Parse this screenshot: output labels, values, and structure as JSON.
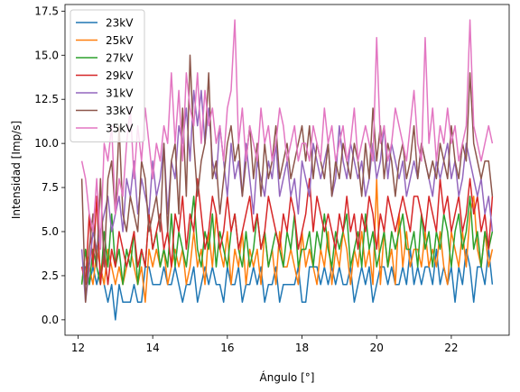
{
  "chart_data": {
    "type": "line",
    "title": "",
    "xlabel": "Ángulo [°]",
    "ylabel": "Intensidad [Imp/s]",
    "xlim": [
      11.65,
      23.55
    ],
    "ylim": [
      -0.875,
      17.875
    ],
    "xticks": [
      "12",
      "14",
      "16",
      "18",
      "20",
      "22"
    ],
    "xtick_values": [
      12,
      14,
      16,
      18,
      20,
      22
    ],
    "yticks": [
      "0.0",
      "2.5",
      "5.0",
      "7.5",
      "10.0",
      "12.5",
      "15.0",
      "17.5"
    ],
    "ytick_values": [
      0,
      2.5,
      5,
      7.5,
      10,
      12.5,
      15,
      17.5
    ],
    "grid": false,
    "legend_position": "top-left",
    "x": [
      12.1,
      12.2,
      12.3,
      12.4,
      12.5,
      12.6,
      12.7,
      12.8,
      12.9,
      13.0,
      13.1,
      13.2,
      13.3,
      13.4,
      13.5,
      13.6,
      13.7,
      13.8,
      13.9,
      14.0,
      14.1,
      14.2,
      14.3,
      14.4,
      14.5,
      14.6,
      14.7,
      14.8,
      14.9,
      15.0,
      15.1,
      15.2,
      15.3,
      15.4,
      15.5,
      15.6,
      15.7,
      15.8,
      15.9,
      16.0,
      16.1,
      16.2,
      16.3,
      16.4,
      16.5,
      16.6,
      16.7,
      16.8,
      16.9,
      17.0,
      17.1,
      17.2,
      17.3,
      17.4,
      17.5,
      17.6,
      17.7,
      17.8,
      17.9,
      18.0,
      18.1,
      18.2,
      18.3,
      18.4,
      18.5,
      18.6,
      18.7,
      18.8,
      18.9,
      19.0,
      19.1,
      19.2,
      19.3,
      19.4,
      19.5,
      19.6,
      19.7,
      19.8,
      19.9,
      20.0,
      20.1,
      20.2,
      20.3,
      20.4,
      20.5,
      20.6,
      20.7,
      20.8,
      20.9,
      21.0,
      21.1,
      21.2,
      21.3,
      21.4,
      21.5,
      21.6,
      21.7,
      21.8,
      21.9,
      22.0,
      22.1,
      22.2,
      22.3,
      22.4,
      22.5,
      22.6,
      22.7,
      22.8,
      22.9,
      23.0,
      23.1
    ],
    "series": [
      {
        "name": "23kV",
        "color": "#1f77b4",
        "values": [
          3,
          3,
          2,
          3,
          2,
          3,
          2,
          1,
          2,
          0,
          2,
          1,
          1,
          1,
          2,
          1,
          1,
          3,
          3,
          2,
          2,
          2,
          3,
          2,
          2,
          3,
          2,
          1,
          2,
          2,
          3,
          1,
          2,
          3,
          2,
          3,
          2,
          2,
          1,
          3,
          2,
          2,
          3,
          1,
          2,
          2,
          3,
          2,
          3,
          1,
          2,
          2,
          3,
          1,
          2,
          2,
          2,
          2,
          3,
          1,
          1,
          3,
          3,
          3,
          2,
          3,
          2,
          3,
          2,
          3,
          2,
          2,
          3,
          1,
          2,
          3,
          2,
          3,
          1,
          2,
          3,
          3,
          2,
          3,
          2,
          2,
          3,
          2,
          4,
          2,
          3,
          2,
          3,
          3,
          2,
          4,
          2,
          3,
          2,
          3,
          1,
          3,
          2,
          4,
          3,
          1,
          3,
          3,
          2,
          4,
          2
        ]
      },
      {
        "name": "25kV",
        "color": "#ff7f0e",
        "values": [
          2,
          4,
          3,
          2,
          4,
          3,
          2,
          4,
          3,
          2,
          3,
          2,
          3,
          4,
          3,
          2,
          3,
          1,
          4,
          3,
          4,
          3,
          4,
          2,
          3,
          4,
          3,
          4,
          2,
          3,
          5,
          3,
          4,
          2,
          5,
          3,
          6,
          4,
          3,
          5,
          2,
          4,
          3,
          5,
          2,
          4,
          3,
          4,
          2,
          5,
          3,
          4,
          2,
          5,
          3,
          3,
          4,
          3,
          2,
          5,
          3,
          4,
          3,
          2,
          4,
          3,
          5,
          2,
          4,
          3,
          5,
          4,
          2,
          4,
          3,
          5,
          3,
          4,
          2,
          8,
          2,
          5,
          3,
          4,
          2,
          6,
          3,
          5,
          3,
          4,
          4,
          3,
          5,
          3,
          4,
          3,
          5,
          3,
          2,
          5,
          4,
          3,
          5,
          3,
          6,
          7,
          4,
          3,
          5,
          3,
          4
        ]
      },
      {
        "name": "27kV",
        "color": "#2ca02c",
        "values": [
          2,
          4,
          2,
          4,
          3,
          2,
          5,
          3,
          6,
          3,
          4,
          2,
          4,
          3,
          5,
          2,
          4,
          3,
          6,
          4,
          5,
          3,
          4,
          3,
          6,
          3,
          5,
          4,
          3,
          5,
          7,
          4,
          3,
          5,
          4,
          6,
          3,
          5,
          4,
          3,
          5,
          6,
          4,
          3,
          5,
          3,
          4,
          6,
          4,
          5,
          3,
          4,
          5,
          4,
          3,
          5,
          4,
          6,
          3,
          4,
          4,
          5,
          3,
          5,
          4,
          6,
          4,
          3,
          5,
          4,
          5,
          6,
          3,
          4,
          5,
          3,
          6,
          4,
          5,
          3,
          4,
          5,
          3,
          5,
          4,
          5,
          6,
          4,
          4,
          5,
          3,
          6,
          4,
          5,
          3,
          5,
          4,
          6,
          5,
          3,
          5,
          6,
          4,
          5,
          7,
          4,
          5,
          3,
          5,
          4,
          5
        ]
      },
      {
        "name": "29kV",
        "color": "#d62728",
        "values": [
          3,
          2,
          6,
          3,
          7,
          2,
          4,
          2,
          4,
          3,
          5,
          4,
          3,
          4,
          5,
          3,
          4,
          3,
          6,
          4,
          5,
          6,
          4,
          5,
          3,
          6,
          5,
          7,
          4,
          6,
          5,
          8,
          6,
          4,
          5,
          7,
          6,
          4,
          5,
          7,
          5,
          6,
          4,
          5,
          6,
          7,
          5,
          6,
          4,
          5,
          7,
          6,
          5,
          4,
          6,
          5,
          7,
          6,
          4,
          5,
          6,
          8,
          5,
          7,
          6,
          5,
          6,
          5,
          4,
          6,
          5,
          7,
          5,
          6,
          4,
          6,
          5,
          7,
          6,
          4,
          6,
          5,
          7,
          6,
          5,
          6,
          7,
          6,
          5,
          7,
          7,
          6,
          5,
          7,
          6,
          5,
          8,
          6,
          7,
          5,
          6,
          7,
          5,
          6,
          8,
          6,
          7,
          5,
          6,
          4,
          7
        ]
      },
      {
        "name": "31kV",
        "color": "#9467bd",
        "values": [
          4,
          1,
          3,
          5,
          4,
          5,
          6,
          7,
          5,
          6,
          7,
          5,
          8,
          7,
          9,
          6,
          8,
          7,
          6,
          9,
          7,
          8,
          10,
          6,
          9,
          8,
          11,
          10,
          12,
          9,
          13,
          11,
          13,
          10,
          12,
          9,
          8,
          11,
          9,
          7,
          10,
          8,
          9,
          7,
          10,
          8,
          6,
          9,
          8,
          7,
          9,
          8,
          10,
          7,
          8,
          9,
          7,
          8,
          6,
          9,
          8,
          7,
          10,
          9,
          8,
          9,
          10,
          7,
          8,
          11,
          9,
          8,
          10,
          9,
          8,
          9,
          7,
          8,
          10,
          8,
          9,
          11,
          8,
          10,
          9,
          8,
          9,
          7,
          8,
          9,
          8,
          10,
          9,
          8,
          7,
          9,
          8,
          9,
          10,
          8,
          9,
          7,
          8,
          10,
          9,
          8,
          7,
          8,
          6,
          7,
          5
        ]
      },
      {
        "name": "33kV",
        "color": "#8c564b",
        "values": [
          8,
          1,
          4,
          6,
          3,
          8,
          3,
          8,
          9,
          6,
          11,
          6,
          5,
          7,
          6,
          5,
          9,
          8,
          5,
          6,
          7,
          5,
          10,
          5,
          9,
          10,
          6,
          12,
          7,
          15,
          10,
          7,
          9,
          10,
          14,
          8,
          9,
          6,
          8,
          10,
          11,
          9,
          10,
          7,
          9,
          11,
          8,
          10,
          7,
          10,
          8,
          9,
          11,
          8,
          9,
          10,
          8,
          9,
          10,
          11,
          9,
          11,
          8,
          10,
          9,
          8,
          10,
          7,
          9,
          8,
          10,
          9,
          8,
          10,
          9,
          7,
          10,
          8,
          12,
          9,
          11,
          8,
          10,
          9,
          7,
          9,
          10,
          8,
          9,
          11,
          8,
          10,
          9,
          8,
          9,
          8,
          10,
          9,
          8,
          11,
          9,
          8,
          10,
          9,
          14,
          10,
          9,
          8,
          9,
          9,
          7
        ]
      },
      {
        "name": "35kV",
        "color": "#e377c2",
        "values": [
          9,
          8,
          6,
          5,
          8,
          4,
          10,
          9,
          11,
          6,
          8,
          7,
          10,
          12,
          8,
          11,
          9,
          12,
          10,
          8,
          10,
          9,
          11,
          10,
          14,
          10,
          13,
          9,
          14,
          12,
          11,
          14,
          10,
          13,
          11,
          12,
          10,
          11,
          9,
          12,
          13,
          17,
          10,
          12,
          9,
          11,
          10,
          9,
          12,
          10,
          11,
          9,
          10,
          12,
          11,
          9,
          10,
          11,
          9,
          10,
          10,
          9,
          11,
          10,
          9,
          12,
          10,
          11,
          9,
          10,
          11,
          9,
          10,
          12,
          9,
          10,
          11,
          10,
          9,
          16,
          10,
          11,
          9,
          10,
          12,
          11,
          10,
          9,
          11,
          13,
          10,
          9,
          16,
          10,
          12,
          9,
          11,
          10,
          12,
          10,
          11,
          9,
          10,
          11,
          17,
          11,
          10,
          9,
          10,
          11,
          10
        ]
      }
    ]
  }
}
